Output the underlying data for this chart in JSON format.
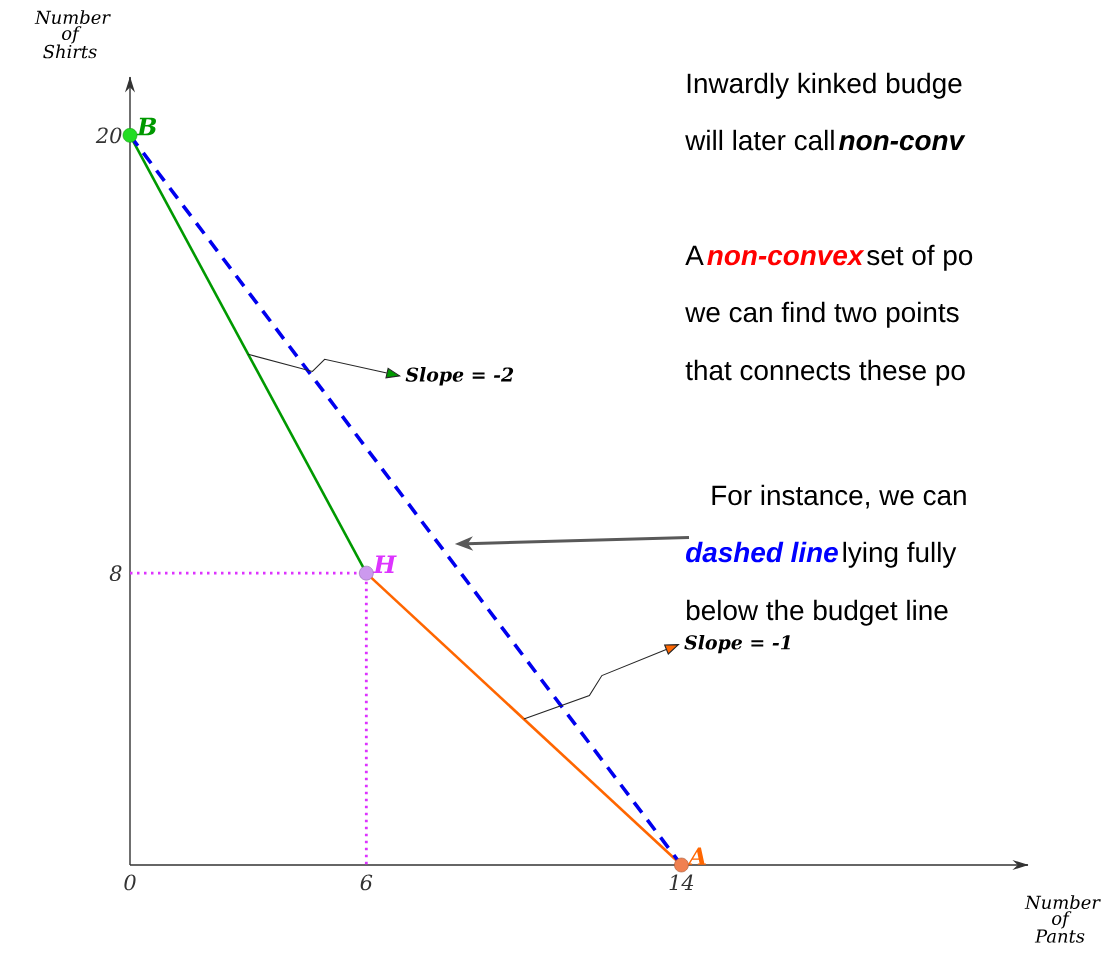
{
  "chart_data": {
    "type": "line",
    "xlabel": "Number of Pants",
    "ylabel": "Number of Shirts",
    "xlim": [
      0,
      22.8
    ],
    "ylim": [
      0,
      21.6
    ],
    "xticks": [
      0,
      6,
      14
    ],
    "yticks": [
      8,
      20
    ],
    "series": [
      {
        "color": "#009900",
        "x": [
          0,
          6
        ],
        "values": [
          20,
          8
        ]
      },
      {
        "color": "#ff6600",
        "x": [
          6,
          14
        ],
        "values": [
          8,
          0
        ]
      },
      {
        "color": "#0000ee",
        "x": [
          0,
          14
        ],
        "values": [
          20,
          0
        ],
        "line_style": "dashed"
      },
      {
        "color": "#dd33ff",
        "x": [
          0,
          6,
          6
        ],
        "values": [
          8,
          8,
          0
        ],
        "line_style": "dotted"
      },
      {
        "type": "scatter",
        "x": [
          0,
          6,
          14
        ],
        "values": [
          20,
          8,
          0
        ],
        "colors": [
          "#22dd22",
          "#cc99ee",
          "#f08050"
        ],
        "marker": "circle"
      }
    ],
    "annotations": [
      {
        "text": "B",
        "x": 0,
        "y": 20
      },
      {
        "text": "H",
        "x": 6,
        "y": 8
      },
      {
        "text": "A",
        "x": 14,
        "y": 0
      },
      {
        "text": "Slope = -2",
        "x": 3,
        "y": 14
      },
      {
        "text": "Slope = -1",
        "x": 10,
        "y": 4
      },
      "Inwardly kinked budge",
      "will later call",
      "non-conv",
      "A",
      "non-convex",
      "set of po",
      "we can find two points",
      "that connects these po",
      "For instance, we can",
      "dashed line",
      "lying fully",
      "below the budget line"
    ]
  }
}
